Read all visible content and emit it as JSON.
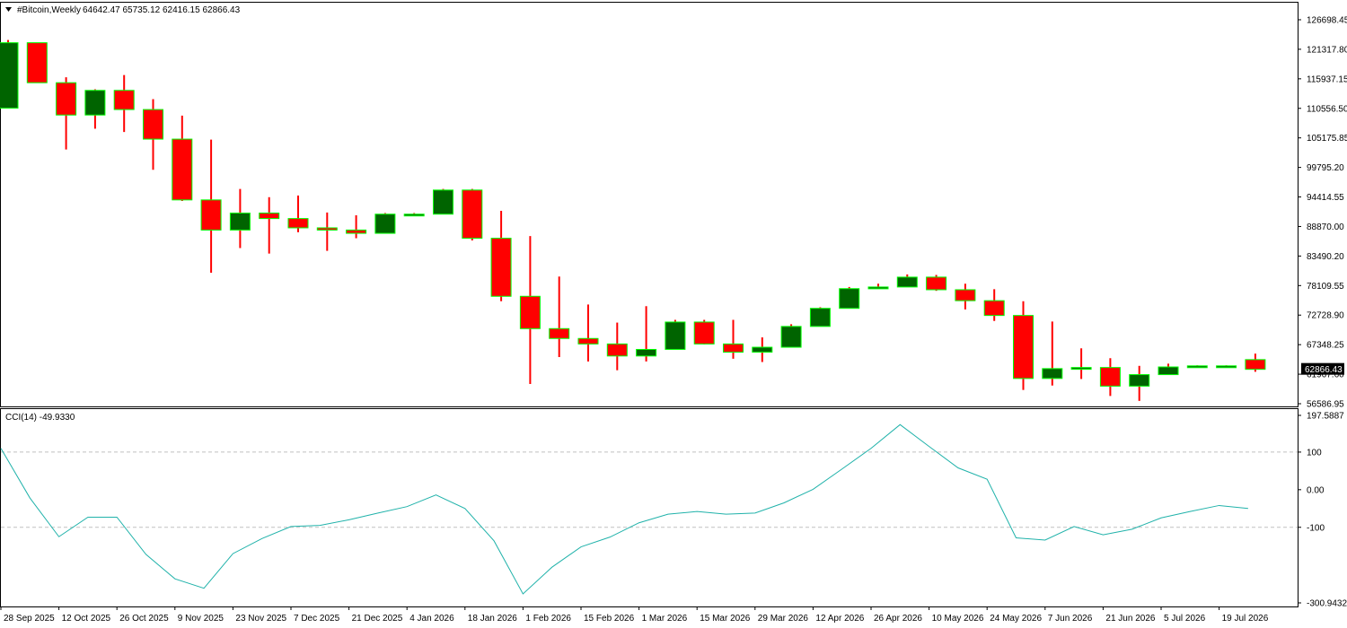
{
  "header": {
    "symbol": "#Bitcoin,Weekly",
    "ohlc": "64642.47 65735.12 62416.15 62866.43",
    "menu_icon": "triangle-down-icon"
  },
  "price_panel": {
    "current_price": "62866.43",
    "y_ticks": [
      "126698.45",
      "121317.80",
      "115937.15",
      "110556.50",
      "105175.85",
      "99795.20",
      "94414.55",
      "88870.00",
      "83490.20",
      "78109.55",
      "72728.90",
      "67348.25",
      "61967.60",
      "56586.95"
    ]
  },
  "cci_panel": {
    "label": "CCI(14) -49.9330",
    "y_ticks": [
      "197.5887",
      "100",
      "0.00",
      "-100",
      "-300.9432"
    ],
    "levels": [
      100,
      -100
    ]
  },
  "x_labels": [
    "28 Sep 2025",
    "12 Oct 2025",
    "26 Oct 2025",
    "9 Nov 2025",
    "23 Nov 2025",
    "7 Dec 2025",
    "21 Dec 2025",
    "4 Jan 2026",
    "18 Jan 2026",
    "1 Feb 2026",
    "15 Feb 2026",
    "1 Mar 2026",
    "15 Mar 2026",
    "29 Mar 2026",
    "12 Apr 2026",
    "26 Apr 2026",
    "10 May 2026",
    "24 May 2026",
    "7 Jun 2026",
    "21 Jun 2026",
    "5 Jul 2026",
    "19 Jul 2026"
  ],
  "colors": {
    "bull": "#006400",
    "bear": "#ff0000",
    "wick_bull": "#00ff00",
    "wick_bear": "#ff0000",
    "cci_line": "#20b2aa",
    "level_line": "#c0c0c0",
    "border": "#000000",
    "price_label_bg": "#000000",
    "price_label_fg": "#ffffff"
  },
  "chart_data": [
    {
      "type": "candlestick",
      "title": "#Bitcoin,Weekly",
      "ylim": [
        56586.95,
        126698.45
      ],
      "candles": [
        {
          "x": 0,
          "o": 110556,
          "h": 123000,
          "l": 110556,
          "c": 122500
        },
        {
          "x": 1,
          "o": 122500,
          "h": 122500,
          "l": 115200,
          "c": 115200
        },
        {
          "x": 2,
          "o": 115200,
          "h": 116200,
          "l": 103000,
          "c": 109300
        },
        {
          "x": 3,
          "o": 109300,
          "h": 114000,
          "l": 106800,
          "c": 113800
        },
        {
          "x": 4,
          "o": 113800,
          "h": 116600,
          "l": 106200,
          "c": 110300
        },
        {
          "x": 5,
          "o": 110300,
          "h": 112200,
          "l": 99300,
          "c": 104900
        },
        {
          "x": 6,
          "o": 104900,
          "h": 109200,
          "l": 93600,
          "c": 93800
        },
        {
          "x": 7,
          "o": 93800,
          "h": 104800,
          "l": 80500,
          "c": 88300
        },
        {
          "x": 8,
          "o": 88300,
          "h": 95800,
          "l": 85000,
          "c": 91400
        },
        {
          "x": 9,
          "o": 91400,
          "h": 94300,
          "l": 84000,
          "c": 90400
        },
        {
          "x": 10,
          "o": 90400,
          "h": 94600,
          "l": 87900,
          "c": 88700
        },
        {
          "x": 11,
          "o": 88700,
          "h": 91500,
          "l": 84500,
          "c": 88300
        },
        {
          "x": 12,
          "o": 88300,
          "h": 91000,
          "l": 86800,
          "c": 87700
        },
        {
          "x": 13,
          "o": 87700,
          "h": 91400,
          "l": 87700,
          "c": 91200
        },
        {
          "x": 14,
          "o": 91200,
          "h": 91400,
          "l": 90900,
          "c": 91200
        },
        {
          "x": 15,
          "o": 91200,
          "h": 95800,
          "l": 91200,
          "c": 95600
        },
        {
          "x": 16,
          "o": 95600,
          "h": 95800,
          "l": 86400,
          "c": 86800
        },
        {
          "x": 17,
          "o": 86800,
          "h": 91800,
          "l": 75300,
          "c": 76200
        },
        {
          "x": 18,
          "o": 76200,
          "h": 87200,
          "l": 60200,
          "c": 70300
        },
        {
          "x": 19,
          "o": 70300,
          "h": 79800,
          "l": 65100,
          "c": 68500
        },
        {
          "x": 20,
          "o": 68500,
          "h": 74700,
          "l": 64300,
          "c": 67500
        },
        {
          "x": 21,
          "o": 67500,
          "h": 71400,
          "l": 62700,
          "c": 65300
        },
        {
          "x": 22,
          "o": 65300,
          "h": 74400,
          "l": 64300,
          "c": 66500
        },
        {
          "x": 23,
          "o": 66500,
          "h": 71900,
          "l": 66500,
          "c": 71500
        },
        {
          "x": 24,
          "o": 71500,
          "h": 71900,
          "l": 67400,
          "c": 67500
        },
        {
          "x": 25,
          "o": 67500,
          "h": 71900,
          "l": 64800,
          "c": 66000
        },
        {
          "x": 26,
          "o": 66000,
          "h": 68700,
          "l": 64200,
          "c": 66900
        },
        {
          "x": 27,
          "o": 66900,
          "h": 71100,
          "l": 66900,
          "c": 70700
        },
        {
          "x": 28,
          "o": 70700,
          "h": 74200,
          "l": 70700,
          "c": 74000
        },
        {
          "x": 29,
          "o": 74000,
          "h": 77900,
          "l": 74000,
          "c": 77600
        },
        {
          "x": 30,
          "o": 77600,
          "h": 78500,
          "l": 77600,
          "c": 77900
        },
        {
          "x": 31,
          "o": 77900,
          "h": 80200,
          "l": 77900,
          "c": 79700
        },
        {
          "x": 32,
          "o": 79700,
          "h": 80100,
          "l": 77200,
          "c": 77400
        },
        {
          "x": 33,
          "o": 77400,
          "h": 78500,
          "l": 73800,
          "c": 75400
        },
        {
          "x": 34,
          "o": 75400,
          "h": 77500,
          "l": 71700,
          "c": 72700
        },
        {
          "x": 35,
          "o": 72700,
          "h": 75300,
          "l": 59100,
          "c": 61200
        },
        {
          "x": 36,
          "o": 61200,
          "h": 71600,
          "l": 59900,
          "c": 63000
        },
        {
          "x": 37,
          "o": 63000,
          "h": 66700,
          "l": 61100,
          "c": 63200
        },
        {
          "x": 38,
          "o": 63200,
          "h": 64900,
          "l": 58000,
          "c": 59800
        },
        {
          "x": 39,
          "o": 59800,
          "h": 63500,
          "l": 57100,
          "c": 61900
        },
        {
          "x": 40,
          "o": 61900,
          "h": 63900,
          "l": 61900,
          "c": 63300
        },
        {
          "x": 41,
          "o": 63300,
          "h": 63600,
          "l": 63300,
          "c": 63500
        },
        {
          "x": 42,
          "o": 63500,
          "h": 63600,
          "l": 63300,
          "c": 63500
        },
        {
          "x": 43,
          "o": 64642.47,
          "h": 65735.12,
          "l": 62416.15,
          "c": 62866.43
        }
      ]
    },
    {
      "type": "line",
      "title": "CCI(14) -49.9330",
      "ylim": [
        -300.9432,
        197.5887
      ],
      "levels": [
        100,
        -100
      ],
      "values": [
        110,
        -22,
        -125,
        -73,
        -73,
        -172,
        -237,
        -262,
        -170,
        -130,
        -98,
        -95,
        -80,
        -62,
        -45,
        -14,
        -50,
        -136,
        -277,
        -206,
        -152,
        -126,
        -88,
        -65,
        -58,
        -65,
        -62,
        -35,
        1,
        55,
        110,
        173,
        115,
        58,
        28,
        -128,
        -134,
        -98,
        -120,
        -105,
        -75,
        -58,
        -42,
        -50
      ]
    }
  ]
}
